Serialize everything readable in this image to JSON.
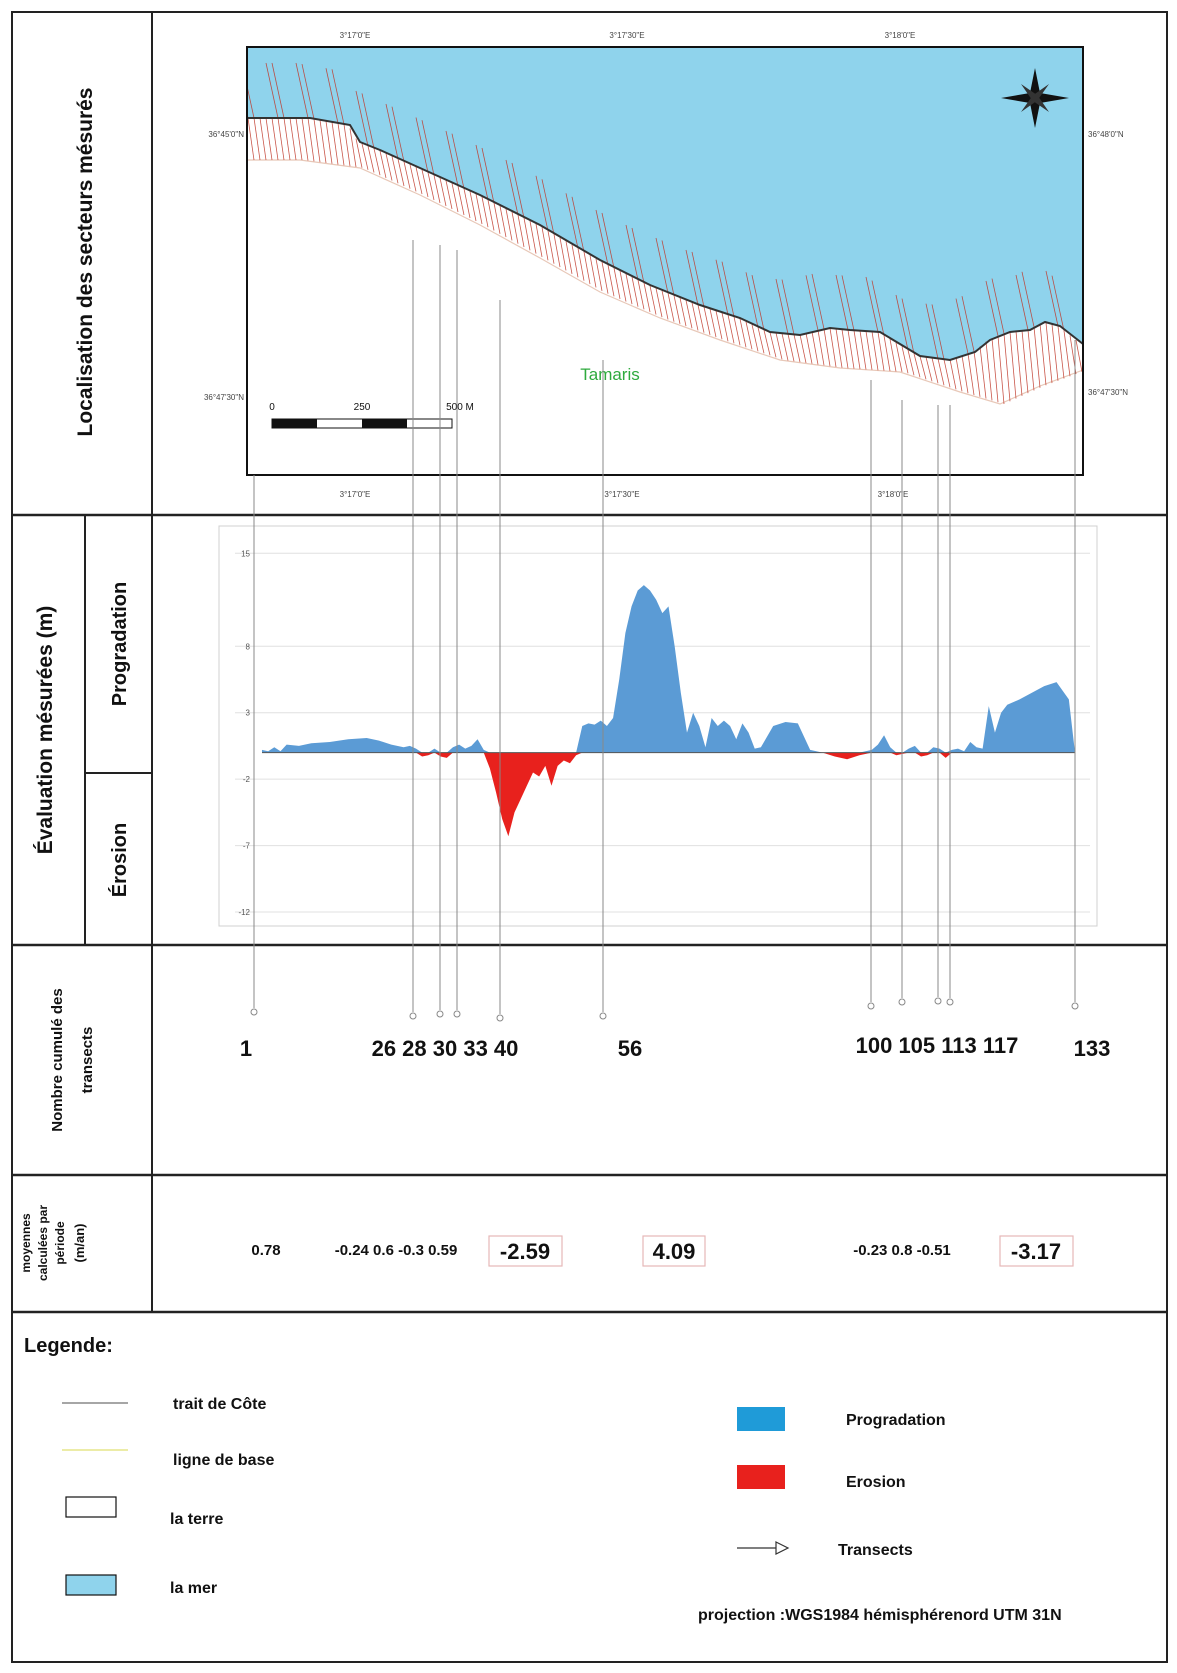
{
  "sections": {
    "map_title": "Localisation des secteurs mésurés",
    "chart_title": "Évaluation mésurées (m)",
    "progradation": "Progradation",
    "erosion": "Érosion",
    "transects_title_1": "Nombre cumulé des",
    "transects_title_2": "transects",
    "averages_title_1": "moyennes",
    "averages_title_2": "calculées par",
    "averages_title_3": "période",
    "averages_title_4": "(m/an)"
  },
  "map": {
    "place_label": "Tamaris",
    "coords": {
      "top_left": "3°17'0\"E",
      "top_mid": "3°17'30\"E",
      "top_right": "3°18'0\"E",
      "bottom_left": "3°17'0\"E",
      "bottom_mid": "3°17'30\"E",
      "bottom_right": "3°18'0\"E",
      "left_top": "36°45'0\"N",
      "left_bottom": "36°47'30\"N",
      "right_top": "36°48'0\"N",
      "right_bottom": "36°47'30\"N"
    },
    "scale": {
      "v0": "0",
      "v1": "250",
      "v2": "500 M"
    },
    "colors": {
      "sea": "#8fd3ec",
      "land": "#ffffff",
      "transect": "#c0392b"
    }
  },
  "chart_data": {
    "type": "area",
    "ylim": [
      -12,
      16
    ],
    "yticks": [
      "15",
      "8",
      "3",
      "-2",
      "-7",
      "-12"
    ],
    "ytick_values": [
      15,
      8,
      3,
      -2,
      -7,
      -12
    ],
    "xlim": [
      1,
      133
    ],
    "x": [
      1,
      2,
      3,
      4,
      5,
      7,
      9,
      12,
      15,
      18,
      20,
      22,
      24,
      25,
      26,
      27,
      28,
      29,
      30,
      31,
      32,
      33,
      34,
      35,
      36,
      37,
      38,
      39,
      40,
      41,
      42,
      43,
      44,
      45,
      46,
      47,
      48,
      49,
      50,
      51,
      52,
      53,
      54,
      55,
      56,
      57,
      58,
      59,
      60,
      61,
      62,
      63,
      64,
      65,
      66,
      67,
      68,
      69,
      70,
      71,
      72,
      73,
      74,
      75,
      76,
      77,
      78,
      79,
      80,
      81,
      82,
      84,
      86,
      88,
      90,
      92,
      94,
      96,
      98,
      100,
      101,
      102,
      103,
      104,
      105,
      106,
      107,
      108,
      109,
      110,
      111,
      112,
      113,
      114,
      115,
      116,
      117,
      118,
      119,
      120,
      121,
      122,
      124,
      126,
      128,
      130,
      132,
      133
    ],
    "values": [
      0.2,
      0.1,
      0.4,
      0.1,
      0.6,
      0.5,
      0.7,
      0.8,
      1.0,
      1.1,
      0.9,
      0.6,
      0.4,
      0.5,
      0.3,
      -0.3,
      -0.2,
      0.3,
      -0.3,
      -0.4,
      0.4,
      0.6,
      0.3,
      0.5,
      1.0,
      0.2,
      -1.2,
      -3.0,
      -5.0,
      -6.3,
      -4.5,
      -3.5,
      -2.5,
      -1.5,
      -1.8,
      -1.0,
      -2.5,
      -1.0,
      -0.6,
      -0.8,
      -0.2,
      2.0,
      2.2,
      2.1,
      2.4,
      2.0,
      2.6,
      5.5,
      9.0,
      11.0,
      12.2,
      12.6,
      12.2,
      11.5,
      10.5,
      11.0,
      8.0,
      4.5,
      1.5,
      3.0,
      2.0,
      0.4,
      2.6,
      2.0,
      2.4,
      2.0,
      1.0,
      2.2,
      1.5,
      0.3,
      0.4,
      2.0,
      2.3,
      2.2,
      0.2,
      0.0,
      -0.3,
      -0.5,
      -0.2,
      0.2,
      0.6,
      1.3,
      0.4,
      -0.2,
      -0.1,
      0.3,
      0.5,
      -0.3,
      -0.2,
      0.4,
      0.3,
      -0.4,
      0.2,
      0.3,
      0.1,
      0.8,
      0.4,
      0.3,
      3.5,
      1.5,
      3.0,
      3.6,
      4.0,
      4.5,
      5.0,
      5.3,
      4.0,
      0.0
    ],
    "pos_color": "#5b9bd5",
    "neg_color": "#e8211d",
    "grid": true
  },
  "transects": {
    "labels": [
      "1",
      "26 28 30 33 40",
      "56",
      "100 105 113 117",
      "133"
    ]
  },
  "averages": {
    "v1": "0.78",
    "group1": "-0.24 0.6 -0.3 0.59",
    "v2": "-2.59",
    "v3": "4.09",
    "group2": "-0.23 0.8 -0.51",
    "v4": "-3.17"
  },
  "legend": {
    "title": "Legende:",
    "coastline": "trait de Côte",
    "baseline": "ligne de base",
    "land": "la terre",
    "sea": "la mer",
    "progradation": "Progradation",
    "erosion": "Erosion",
    "transects": "Transects",
    "projection": "projection :WGS1984 hémisphérenord UTM 31N",
    "colors": {
      "coastline": "#888888",
      "baseline": "#e6e68a",
      "land": "#ffffff",
      "sea": "#8fd3ec",
      "progradation": "#1f9bd8",
      "erosion": "#e8211d"
    }
  }
}
